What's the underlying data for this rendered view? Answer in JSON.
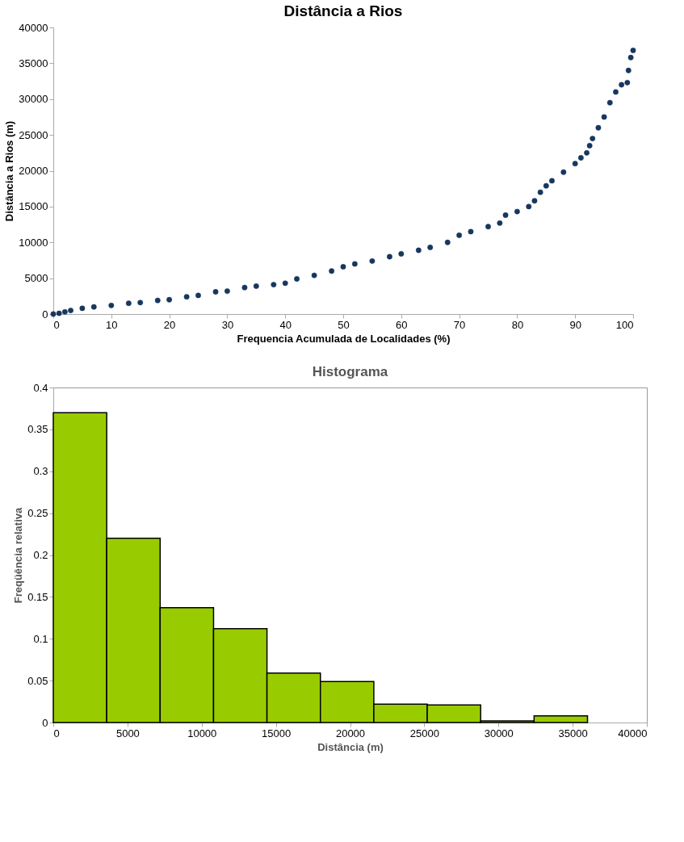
{
  "chart_data": [
    {
      "type": "scatter",
      "title": "Distância a Rios",
      "xlabel": "Frequencia Acumulada de Localidades (%)",
      "ylabel": "Distância  a Rios (m)",
      "color": "#17375e",
      "marker": "circle",
      "grid": false,
      "x": [
        0,
        1,
        2,
        3,
        5,
        7,
        10,
        13,
        15,
        18,
        20,
        23,
        25,
        28,
        30,
        33,
        35,
        38,
        40,
        42,
        45,
        48,
        50,
        52,
        55,
        58,
        60,
        63,
        65,
        68,
        70,
        72,
        75,
        77,
        78,
        80,
        82,
        83,
        84,
        85,
        86,
        88,
        90,
        91,
        92,
        92.5,
        93,
        94,
        95,
        96,
        97,
        98,
        99,
        99.2,
        99.6,
        100
      ],
      "values": [
        0,
        100,
        300,
        500,
        800,
        1000,
        1200,
        1500,
        1600,
        1900,
        2000,
        2400,
        2600,
        3100,
        3200,
        3700,
        3900,
        4100,
        4300,
        4900,
        5400,
        6000,
        6600,
        7000,
        7400,
        8000,
        8400,
        8900,
        9300,
        10000,
        11000,
        11500,
        12200,
        12700,
        13800,
        14300,
        15000,
        15800,
        17000,
        17900,
        18600,
        19800,
        21000,
        21800,
        22500,
        23500,
        24500,
        26000,
        27500,
        29500,
        31000,
        32000,
        32300,
        34000,
        35800,
        36800
      ],
      "xlim": [
        0,
        100
      ],
      "xticks": [
        0,
        10,
        20,
        30,
        40,
        50,
        60,
        70,
        80,
        90,
        100
      ],
      "ylim": [
        0,
        40000
      ],
      "yticks": [
        0,
        5000,
        10000,
        15000,
        20000,
        25000,
        30000,
        35000,
        40000
      ]
    },
    {
      "type": "histogram",
      "title": "Histograma",
      "xlabel": "Distância (m)",
      "ylabel": "Freqüência relativa",
      "color": "#99cc00",
      "grid": false,
      "bins": [
        0,
        3600,
        7200,
        10800,
        14400,
        18000,
        21600,
        25200,
        28800,
        32400,
        36000
      ],
      "values": [
        0.37,
        0.22,
        0.137,
        0.112,
        0.059,
        0.049,
        0.022,
        0.021,
        0.002,
        0.008
      ],
      "xlim": [
        0,
        40000
      ],
      "xticks": [
        0,
        5000,
        10000,
        15000,
        20000,
        25000,
        30000,
        35000,
        40000
      ],
      "ylim": [
        0,
        0.4
      ],
      "yticks": [
        0,
        0.05,
        0.1,
        0.15,
        0.2,
        0.25,
        0.3,
        0.35,
        0.4
      ]
    }
  ]
}
